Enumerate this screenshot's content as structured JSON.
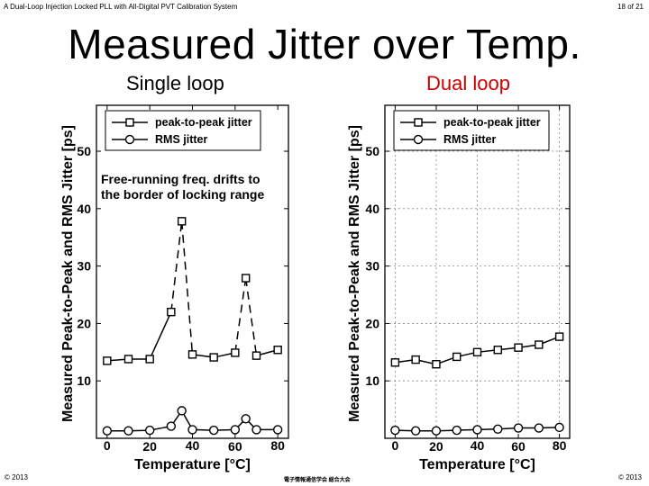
{
  "header": {
    "left": "A Dual-Loop Injection Locked PLL with All-Digital PVT Calibration System",
    "right": "18 of 21"
  },
  "title": "Measured Jitter over Temp.",
  "footer": {
    "left": "© 2013",
    "center": "電子情報通信学会 総合大会",
    "right": "© 2013"
  },
  "colors": {
    "subtitle_right": "#cc0000"
  },
  "chart_data": [
    {
      "type": "line",
      "title": "Single loop",
      "xlabel": "Temperature [°C]",
      "ylabel": "Measured Peak-to-Peak and RMS Jitter [ps]",
      "xlim": [
        -5,
        85
      ],
      "ylim": [
        0,
        58
      ],
      "xticks": [
        0,
        20,
        40,
        60,
        80
      ],
      "yticks": [
        10,
        20,
        30,
        40,
        50
      ],
      "grid": false,
      "legend": "top-left",
      "annotation": [
        "Free-running freq. drifts to",
        "the border of locking range"
      ],
      "series": [
        {
          "name": "peak-to-peak jitter",
          "marker": "square",
          "x": [
            0,
            10,
            20,
            30,
            35,
            40,
            50,
            60,
            65,
            70,
            80
          ],
          "y": [
            13.5,
            13.8,
            13.8,
            22,
            37.8,
            14.6,
            14.1,
            14.9,
            27.9,
            14.4,
            15.4
          ],
          "dashed_segments": [
            3,
            4,
            7,
            8
          ]
        },
        {
          "name": "RMS jitter",
          "marker": "circle",
          "x": [
            0,
            10,
            20,
            30,
            35,
            40,
            50,
            60,
            65,
            70,
            80
          ],
          "y": [
            1.3,
            1.3,
            1.4,
            2.1,
            4.8,
            1.5,
            1.4,
            1.5,
            3.4,
            1.5,
            1.5
          ]
        }
      ]
    },
    {
      "type": "line",
      "title": "Dual loop",
      "xlabel": "Temperature [°C]",
      "ylabel": "Measured Peak-to-Peak and RMS Jitter [ps]",
      "xlim": [
        -5,
        85
      ],
      "ylim": [
        0,
        58
      ],
      "xticks": [
        0,
        20,
        40,
        60,
        80
      ],
      "yticks": [
        10,
        20,
        30,
        40,
        50
      ],
      "grid": true,
      "legend": "top-left",
      "series": [
        {
          "name": "peak-to-peak jitter",
          "marker": "square",
          "x": [
            0,
            10,
            20,
            30,
            40,
            50,
            60,
            70,
            80
          ],
          "y": [
            13.2,
            13.7,
            12.9,
            14.2,
            15.0,
            15.4,
            15.8,
            16.3,
            17.7
          ]
        },
        {
          "name": "RMS jitter",
          "marker": "circle",
          "x": [
            0,
            10,
            20,
            30,
            40,
            50,
            60,
            70,
            80
          ],
          "y": [
            1.4,
            1.3,
            1.3,
            1.4,
            1.5,
            1.6,
            1.8,
            1.8,
            1.9
          ]
        }
      ]
    }
  ]
}
